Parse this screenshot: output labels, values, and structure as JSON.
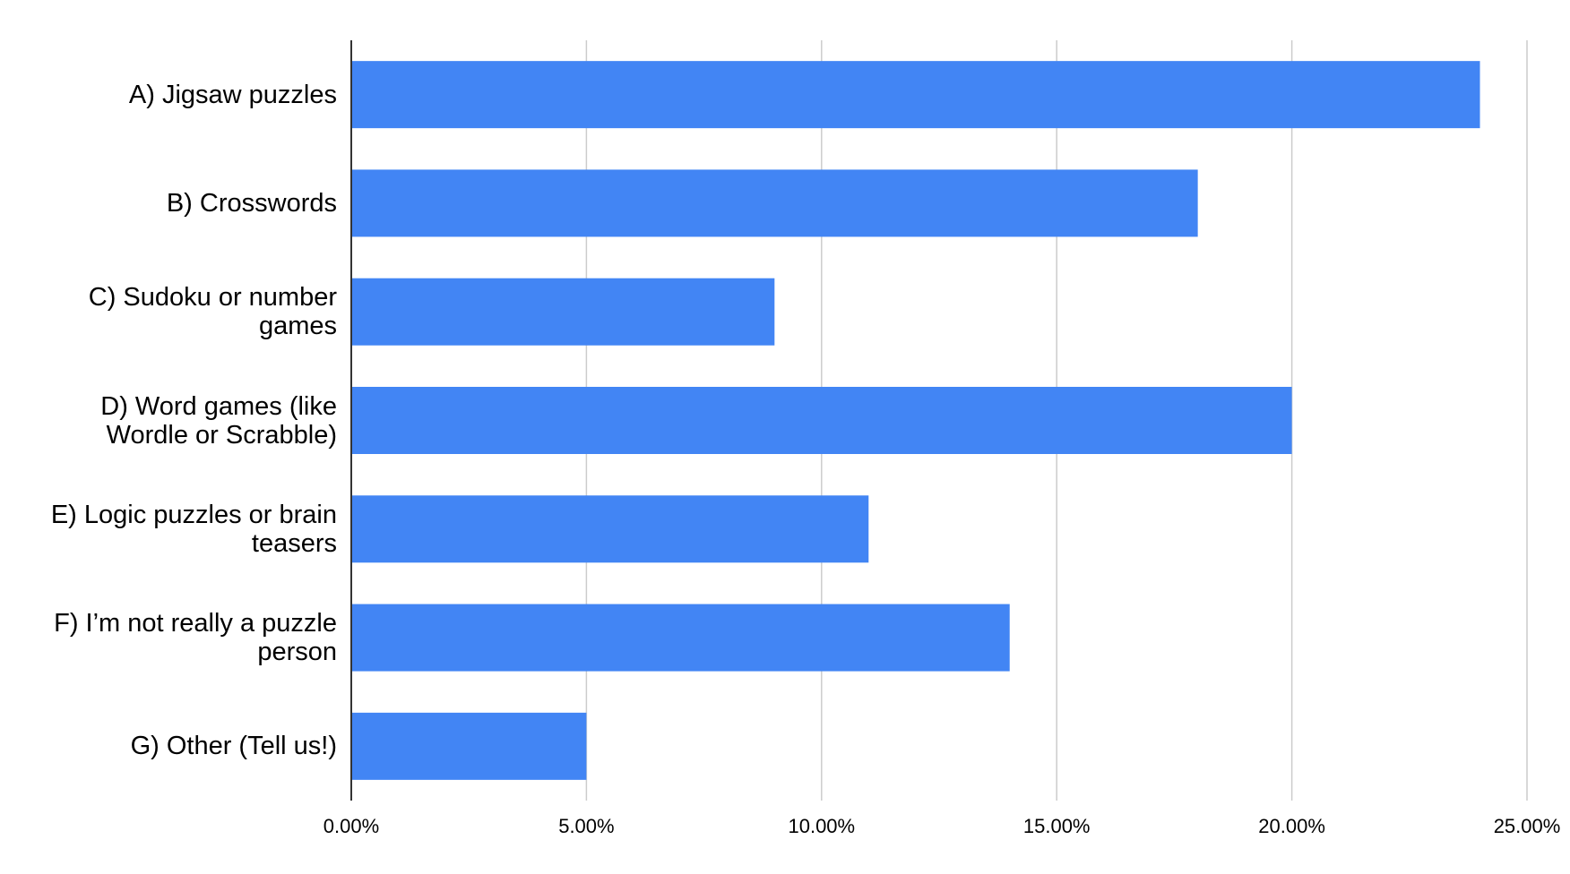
{
  "chart_data": {
    "type": "bar",
    "orientation": "horizontal",
    "categories": [
      "A) Jigsaw puzzles",
      "B) Crosswords",
      "C) Sudoku or number games",
      "D) Word games (like Wordle or Scrabble)",
      "E) Logic puzzles or brain teasers",
      "F) I’m not really a puzzle person",
      "G) Other (Tell us!)"
    ],
    "values": [
      24,
      18,
      9,
      20,
      11,
      14,
      5
    ],
    "color": "#4285f4",
    "xlim": [
      0,
      25
    ],
    "xticks": [
      {
        "value": 0,
        "label": "0.00%"
      },
      {
        "value": 5,
        "label": "5.00%"
      },
      {
        "value": 10,
        "label": "10.00%"
      },
      {
        "value": 15,
        "label": "15.00%"
      },
      {
        "value": 20,
        "label": "20.00%"
      },
      {
        "value": 25,
        "label": "25.00%"
      }
    ],
    "grid": true
  }
}
